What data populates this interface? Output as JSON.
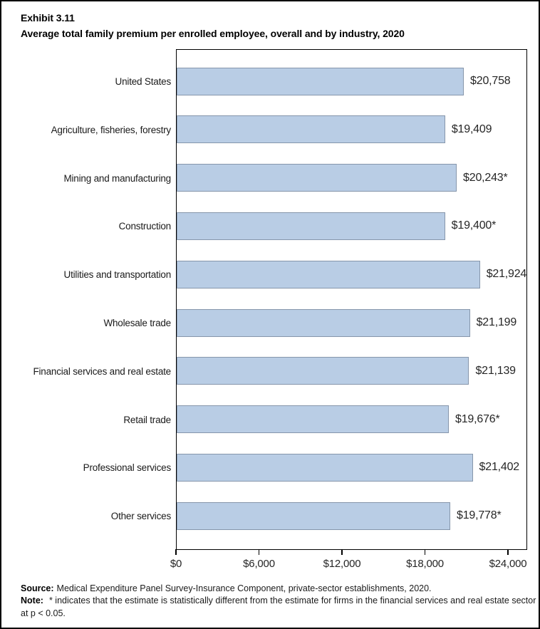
{
  "header": {
    "exhibit": "Exhibit 3.11",
    "title": "Average total family premium per enrolled employee, overall and by industry, 2020"
  },
  "chart_data": {
    "type": "bar",
    "orientation": "horizontal",
    "title": "Average total family premium per enrolled employee, overall and by industry, 2020",
    "categories": [
      "United States",
      "Agriculture, fisheries, forestry",
      "Mining and manufacturing",
      "Construction",
      "Utilities and transportation",
      "Wholesale trade",
      "Financial services and real estate",
      "Retail trade",
      "Professional services",
      "Other services"
    ],
    "values": [
      20758,
      19409,
      20243,
      19400,
      21924,
      21199,
      21139,
      19676,
      21402,
      19778
    ],
    "value_labels": [
      "$20,758",
      "$19,409",
      "$20,243*",
      "$19,400*",
      "$21,924",
      "$21,199",
      "$21,139",
      "$19,676*",
      "$21,402",
      "$19,778*"
    ],
    "x_ticks": [
      {
        "label": "$0",
        "value": 0
      },
      {
        "label": "$6,000",
        "value": 6000
      },
      {
        "label": "$12,000",
        "value": 12000
      },
      {
        "label": "$18,000",
        "value": 18000
      },
      {
        "label": "$24,000",
        "value": 24000
      }
    ],
    "xlim": [
      0,
      25450
    ],
    "xlabel": "",
    "ylabel": "",
    "grid": false,
    "legend": "none",
    "colors": {
      "bar_fill": "#b9cde5",
      "bar_border": "#8696ab",
      "axis": "#000000",
      "text": "#262626"
    }
  },
  "footer": {
    "source_label": "Source:",
    "source_text": "Medical Expenditure Panel Survey-Insurance Component, private-sector establishments, 2020.",
    "note_label": "Note:",
    "note_text": "* indicates that the estimate is statistically different from the estimate for firms in the financial services and real estate sector at p < 0.05."
  }
}
